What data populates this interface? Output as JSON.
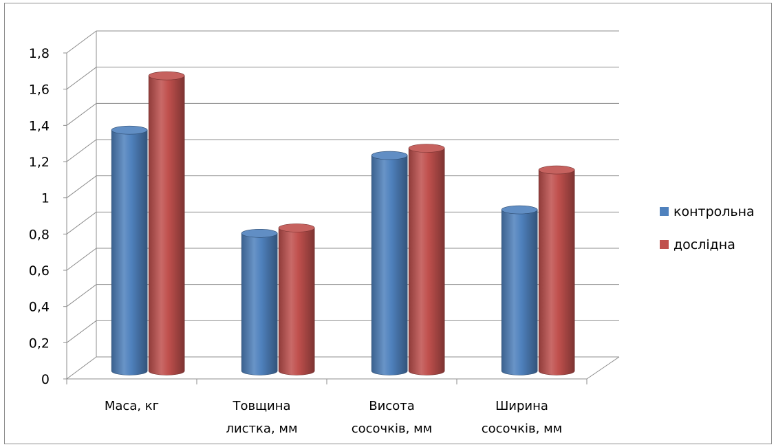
{
  "chart_data": {
    "type": "bar",
    "title": "",
    "xlabel": "",
    "ylabel": "",
    "categories": [
      [
        "Маса, кг"
      ],
      [
        "Товщина",
        "листка, мм"
      ],
      [
        "Висота",
        "сосочків, мм"
      ],
      [
        "Ширина",
        "сосочків, мм"
      ]
    ],
    "series": [
      {
        "name": "контрольна",
        "color": "#4f81bd",
        "values": [
          1.33,
          0.76,
          1.19,
          0.89
        ]
      },
      {
        "name": "дослідна",
        "color": "#c0504d",
        "values": [
          1.63,
          0.79,
          1.23,
          1.11
        ]
      }
    ],
    "ylim": [
      0,
      1.8
    ],
    "yticks": [
      "0",
      "0,2",
      "0,4",
      "0,6",
      "0,8",
      "1",
      "1,2",
      "1,4",
      "1,6",
      "1,8"
    ],
    "grid": true,
    "legend_position": "right",
    "style": "3d-cylinder"
  }
}
